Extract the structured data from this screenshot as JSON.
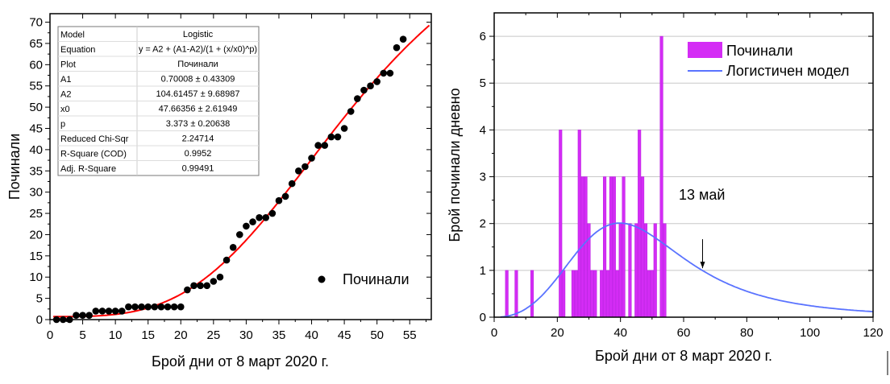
{
  "chart_data": [
    {
      "type": "scatter",
      "title": "",
      "xlabel": "Брой дни от 8 март 2020 г.",
      "ylabel": "Починали",
      "xlim": [
        0,
        58
      ],
      "ylim": [
        0,
        72
      ],
      "xticks": [
        0,
        5,
        10,
        15,
        20,
        25,
        30,
        35,
        40,
        45,
        50,
        55
      ],
      "yticks": [
        0,
        5,
        10,
        15,
        20,
        25,
        30,
        35,
        40,
        45,
        50,
        55,
        60,
        65,
        70
      ],
      "x": [
        1,
        2,
        3,
        4,
        5,
        6,
        7,
        8,
        9,
        10,
        11,
        12,
        13,
        14,
        15,
        16,
        17,
        18,
        19,
        20,
        21,
        22,
        23,
        24,
        25,
        26,
        27,
        28,
        29,
        30,
        31,
        32,
        33,
        34,
        35,
        36,
        37,
        38,
        39,
        40,
        41,
        42,
        43,
        44,
        45,
        46,
        47,
        48,
        49,
        50,
        51,
        52,
        53,
        54
      ],
      "y": [
        0,
        0,
        0,
        1,
        1,
        1,
        2,
        2,
        2,
        2,
        2,
        3,
        3,
        3,
        3,
        3,
        3,
        3,
        3,
        3,
        7,
        8,
        8,
        8,
        9,
        10,
        14,
        17,
        20,
        22,
        23,
        24,
        24,
        25,
        28,
        29,
        32,
        35,
        36,
        38,
        41,
        41,
        43,
        43,
        45,
        49,
        52,
        54,
        55,
        56,
        58,
        58,
        64,
        66
      ],
      "series_name": "Починали",
      "legend": {
        "label": "Починали",
        "position": "bottom-right"
      },
      "fit": {
        "A1": 0.70008,
        "A2": 104.61457,
        "x0": 47.66356,
        "p": 3.373,
        "color": "#ff0000"
      },
      "fit_table": {
        "rows": [
          [
            "Model",
            "Logistic"
          ],
          [
            "Equation",
            "y = A2 + (A1-A2)/(1 + (x/x0)^p)"
          ],
          [
            "Plot",
            "Починали"
          ],
          [
            "A1",
            "0.70008 ± 0.43309"
          ],
          [
            "A2",
            "104.61457 ± 9.68987"
          ],
          [
            "x0",
            "47.66356 ± 2.61949"
          ],
          [
            "p",
            "3.373 ± 0.20638"
          ],
          [
            "Reduced Chi-Sqr",
            "2.24714"
          ],
          [
            "R-Square (COD)",
            "0.9952"
          ],
          [
            "Adj. R-Square",
            "0.99491"
          ]
        ],
        "equation_display": "y = A2 + (A1-A2)/(1 + (x/x0)"
      }
    },
    {
      "type": "bar",
      "title": "",
      "xlabel": "Брой дни от 8 март 2020 г.",
      "ylabel": "Брой починали дневно",
      "xlim": [
        0,
        120
      ],
      "ylim": [
        0,
        6.5
      ],
      "xticks": [
        0,
        20,
        40,
        60,
        80,
        100,
        120
      ],
      "yticks": [
        0,
        1,
        2,
        3,
        4,
        5,
        6
      ],
      "grid": true,
      "x": [
        4,
        7,
        12,
        21,
        22,
        25,
        26,
        27,
        28,
        29,
        30,
        31,
        32,
        34,
        35,
        36,
        37,
        38,
        39,
        40,
        41,
        43,
        45,
        46,
        47,
        48,
        49,
        50,
        51,
        53,
        54
      ],
      "values": [
        1,
        1,
        1,
        4,
        1,
        1,
        1,
        4,
        3,
        3,
        2,
        1,
        1,
        1,
        3,
        1,
        3,
        3,
        1,
        2,
        3,
        2,
        2,
        4,
        3,
        2,
        1,
        1,
        2,
        6,
        2
      ],
      "bar_color": "#d42cf5",
      "model": {
        "name": "Логистичен модел",
        "color": "#5a73ff",
        "derived_from": "logistic fit derivative"
      },
      "legend": {
        "entries": [
          "Починали",
          "Логистичен модел"
        ],
        "position": "top-right"
      },
      "annotation": {
        "text": "13 май",
        "arrow_x": 66
      }
    }
  ]
}
